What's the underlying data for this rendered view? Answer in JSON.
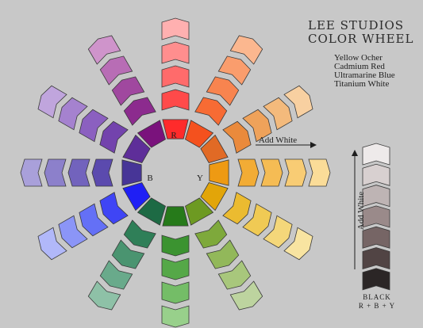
{
  "title": [
    "LEE STUDIOS",
    "COLOR WHEEL"
  ],
  "paints": [
    "Yellow Ocher",
    "Cadmium Red",
    "Ultramarine Blue",
    "Titanium White"
  ],
  "wheel": {
    "primary_labels": {
      "r": "R",
      "y": "Y",
      "b": "B"
    },
    "add_white_label": "Add White",
    "spokes": [
      [
        "#ff2b2b",
        "#ff4a4a",
        "#ff6b6b",
        "#ff8e8e",
        "#ffb0b0"
      ],
      [
        "#f4511e",
        "#f76b34",
        "#f8844f",
        "#fa9d6d",
        "#fbb78f"
      ],
      [
        "#e16a25",
        "#ea8a3c",
        "#efa25a",
        "#f4ba7c",
        "#f8d0a1"
      ],
      [
        "#ee9a13",
        "#f2ac35",
        "#f5bc54",
        "#f8cc74",
        "#fadc98"
      ],
      [
        "#e2a509",
        "#ebbb30",
        "#f0ca54",
        "#f4d77a",
        "#f8e4a1"
      ],
      [
        "#6d9a22",
        "#7ea93b",
        "#92b85a",
        "#a8c77c",
        "#bdd49f"
      ],
      [
        "#267a1a",
        "#3b9330",
        "#55a848",
        "#74bd67",
        "#98d08b"
      ],
      [
        "#1d6a44",
        "#2f7f58",
        "#4a9470",
        "#69aa8b",
        "#8ec1a7"
      ],
      [
        "#1f1ff5",
        "#3f45f5",
        "#6470f6",
        "#8b95f7",
        "#b1b8f9"
      ],
      [
        "#473597",
        "#5b4aae",
        "#7263bd",
        "#8c80cb",
        "#a9a0da"
      ],
      [
        "#5e2e99",
        "#7343ad",
        "#8b60c0",
        "#a582cf",
        "#c0a5dd"
      ],
      [
        "#7a127c",
        "#8c2b8e",
        "#a0489f",
        "#b86db5",
        "#cf94cb"
      ]
    ]
  },
  "value_scale": {
    "label": "Add White",
    "swatches": [
      "#eeeaea",
      "#d8d0d0",
      "#beb4b4",
      "#9a8a8a",
      "#766565",
      "#514444",
      "#2b2626"
    ],
    "black_label": [
      "BLACK",
      "R + B + Y"
    ]
  }
}
